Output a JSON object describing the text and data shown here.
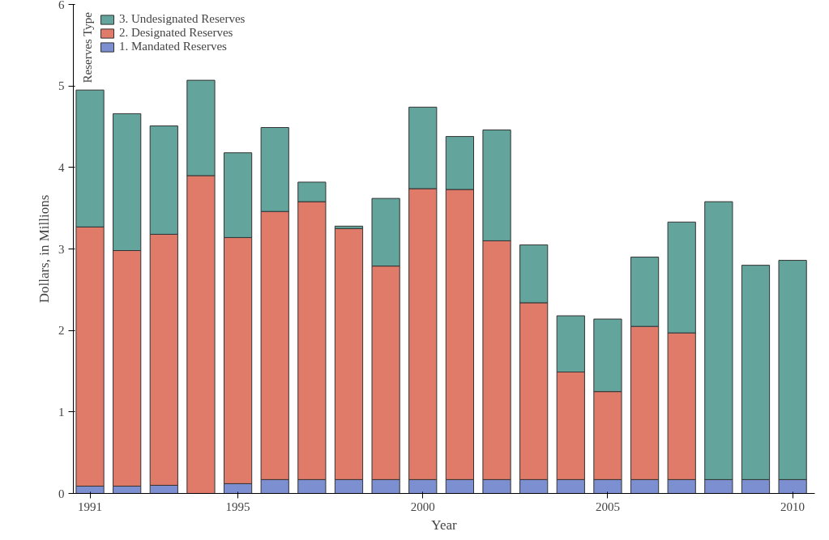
{
  "chart_data": {
    "type": "bar",
    "stacked": true,
    "xlabel": "Year",
    "ylabel": "Dollars, in Millions",
    "legend_title": "Reserves Type",
    "legend": "top left",
    "grid": false,
    "x": [
      1991,
      1992,
      1993,
      1994,
      1995,
      1996,
      1997,
      1998,
      1999,
      2000,
      2001,
      2002,
      2003,
      2004,
      2005,
      2006,
      2007,
      2008,
      2009,
      2010
    ],
    "xlim": [
      1990.55,
      2010.6
    ],
    "xticks": [
      1991,
      1995,
      2000,
      2005,
      2010
    ],
    "ylim": [
      0,
      6
    ],
    "yticks": [
      0,
      1,
      2,
      3,
      4,
      5,
      6
    ],
    "series": [
      {
        "name": "1. Mandated Reserves",
        "color": "#7b8fd1",
        "values": [
          0.09,
          0.09,
          0.1,
          0,
          0.12,
          0.17,
          0.17,
          0.17,
          0.17,
          0.17,
          0.17,
          0.17,
          0.17,
          0.17,
          0.17,
          0.17,
          0.17,
          0.17,
          0.17,
          0.17
        ]
      },
      {
        "name": "2. Designated Reserves",
        "color": "#e07b6a",
        "values": [
          3.18,
          2.89,
          3.08,
          3.9,
          3.02,
          3.29,
          3.41,
          3.08,
          2.62,
          3.57,
          3.56,
          2.93,
          2.17,
          1.32,
          1.08,
          1.88,
          1.8,
          0,
          0,
          0
        ]
      },
      {
        "name": "3. Undesignated Reserves",
        "color": "#63a59c",
        "values": [
          1.68,
          1.68,
          1.33,
          1.17,
          1.04,
          1.03,
          0.24,
          0.03,
          0.83,
          1.0,
          0.65,
          1.36,
          0.71,
          0.69,
          0.89,
          0.85,
          1.36,
          3.41,
          2.63,
          2.69
        ]
      }
    ]
  }
}
